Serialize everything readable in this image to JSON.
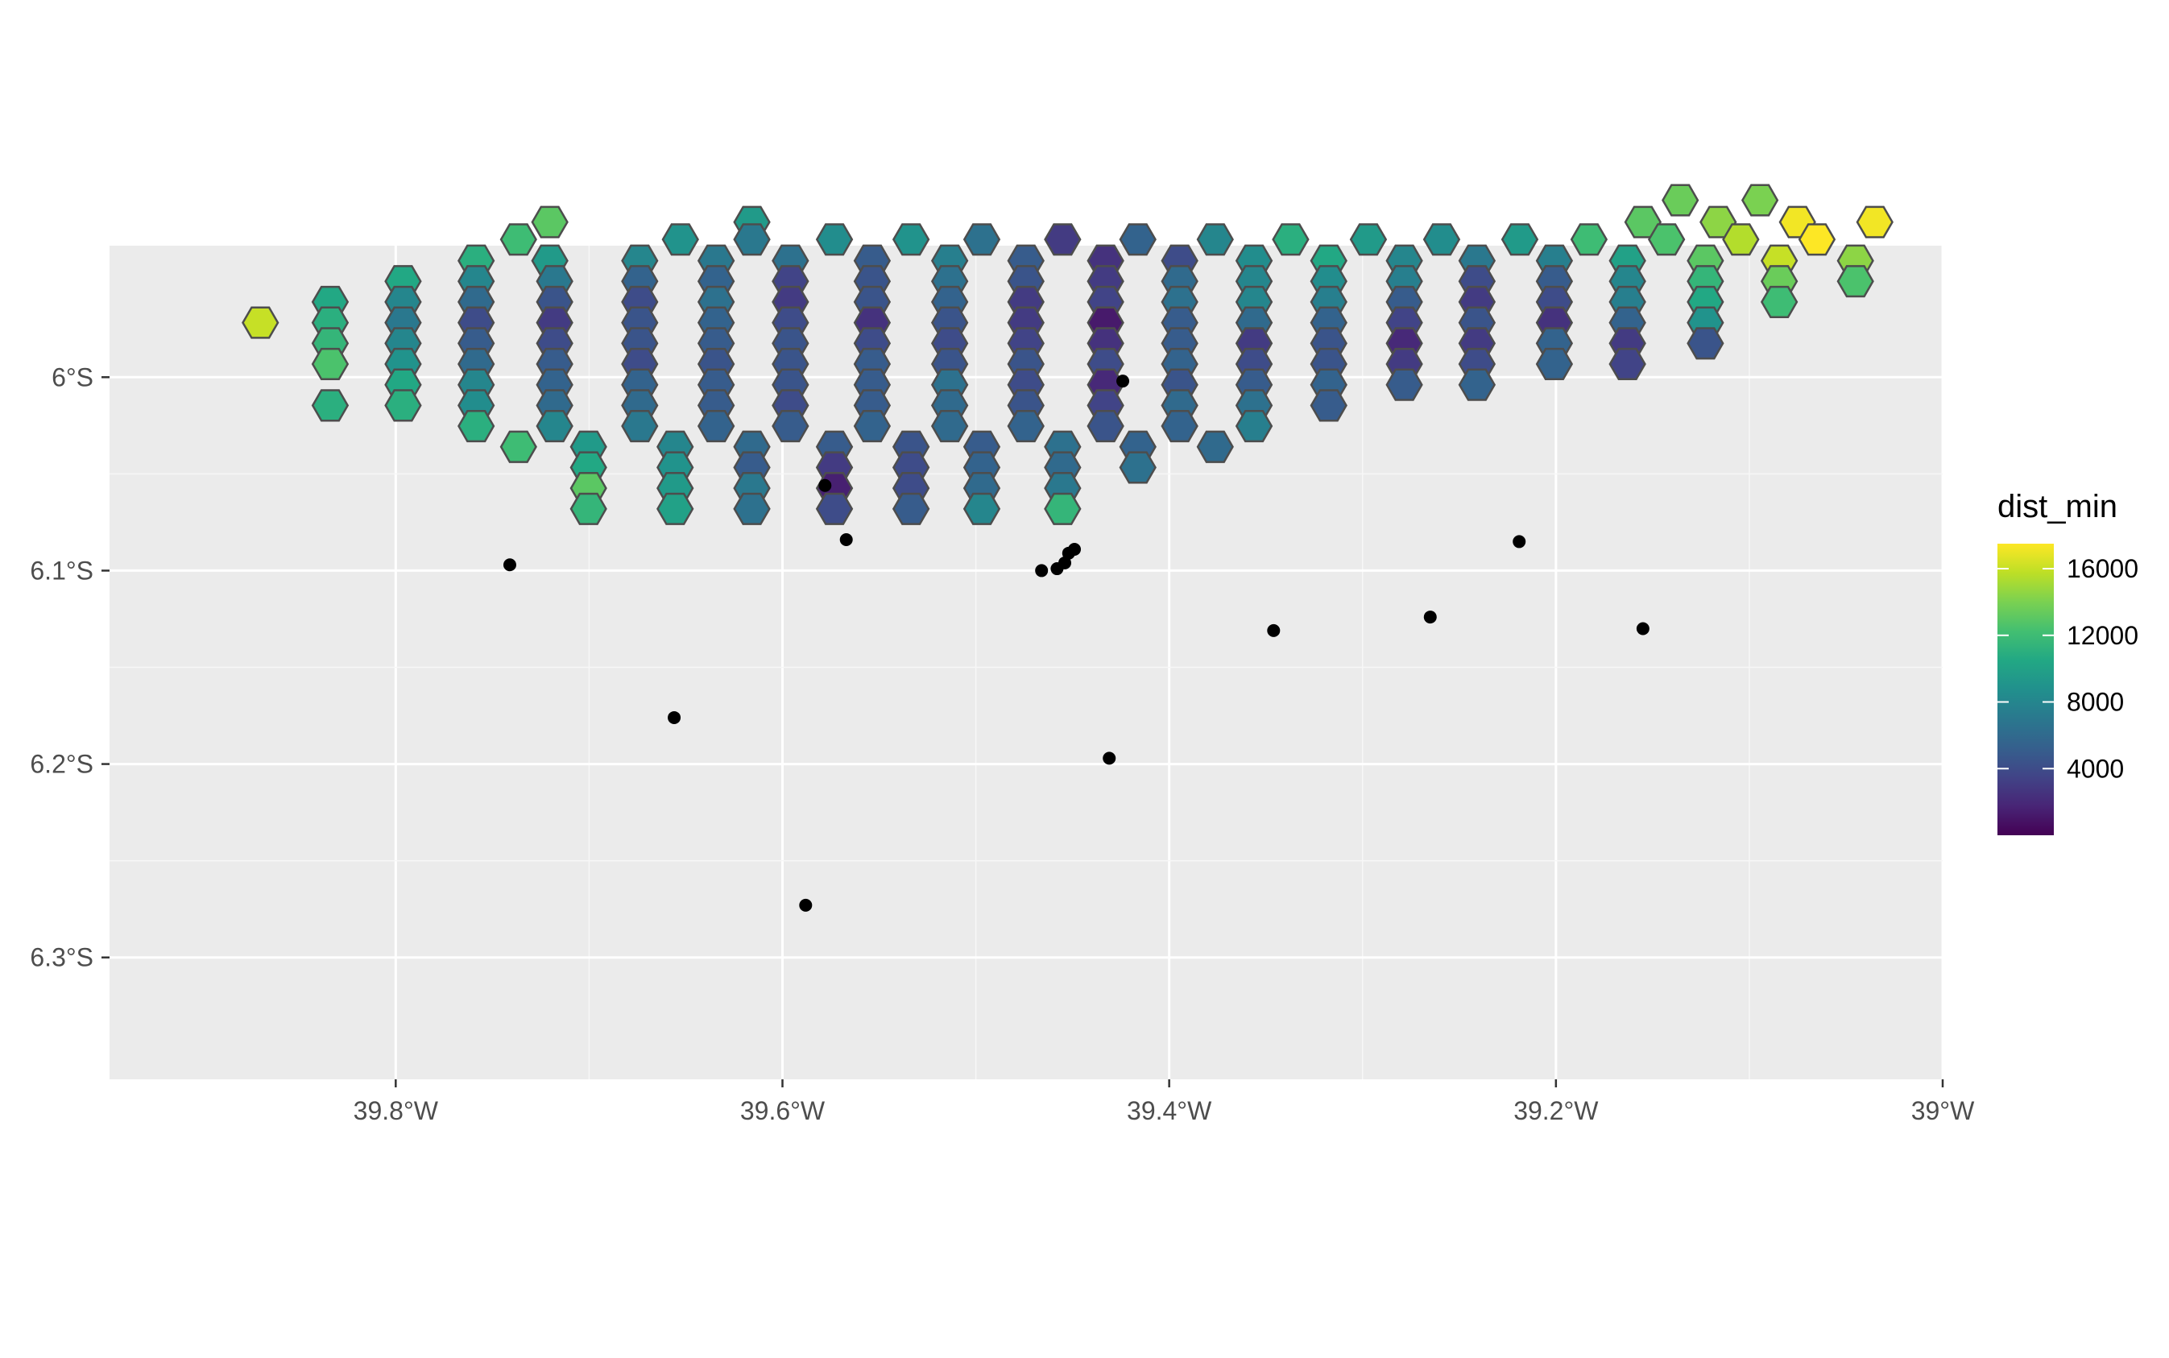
{
  "chart_data": {
    "type": "map",
    "geometry": "hexagonal grid over a region",
    "fill_variable": "dist_min",
    "x_ticks": [
      {
        "value": -39.8,
        "label": "39.8°W"
      },
      {
        "value": -39.6,
        "label": "39.6°W"
      },
      {
        "value": -39.4,
        "label": "39.4°W"
      },
      {
        "value": -39.2,
        "label": "39.2°W"
      },
      {
        "value": -39.0,
        "label": "39°W"
      }
    ],
    "y_ticks": [
      {
        "value": -6.0,
        "label": "6°S"
      },
      {
        "value": -6.1,
        "label": "6.1°S"
      },
      {
        "value": -6.2,
        "label": "6.2°S"
      },
      {
        "value": -6.3,
        "label": "6.3°S"
      }
    ],
    "xlim": [
      -39.948,
      -39.0
    ],
    "ylim": [
      -6.363,
      -5.932
    ],
    "grid": true,
    "legend": {
      "title": "dist_min",
      "position": "right",
      "scale": "viridis",
      "range": [
        0,
        17500
      ],
      "breaks": [
        {
          "value": 4000,
          "label": "4000"
        },
        {
          "value": 8000,
          "label": "8000"
        },
        {
          "value": 12000,
          "label": "12000"
        },
        {
          "value": 16000,
          "label": "16000"
        }
      ]
    },
    "hex_size_deg": 0.0181,
    "hex_rows": [
      {
        "lat": -5.9085,
        "cells": [
          [
            -39.1357,
            13500
          ],
          [
            -39.0945,
            14000
          ]
        ]
      },
      {
        "lat": -5.9198,
        "cells": [
          [
            -39.7203,
            13000
          ],
          [
            -39.6158,
            9500
          ],
          [
            -39.155,
            13000
          ],
          [
            -39.1161,
            14500
          ],
          [
            -39.0751,
            17200
          ],
          [
            -39.0351,
            17200
          ]
        ]
      },
      {
        "lat": -5.9288,
        "cells": [
          [
            -39.7365,
            12000
          ],
          [
            -39.6528,
            9000
          ],
          [
            -39.6158,
            7000
          ],
          [
            -39.5731,
            8500
          ],
          [
            -39.5335,
            9000
          ],
          [
            -39.4969,
            6500
          ],
          [
            -39.4551,
            3000
          ],
          [
            -39.4162,
            5500
          ],
          [
            -39.3762,
            8000
          ],
          [
            -39.3372,
            11000
          ],
          [
            -39.297,
            9500
          ],
          [
            -39.2591,
            8500
          ],
          [
            -39.2187,
            9500
          ],
          [
            -39.1829,
            12000
          ],
          [
            -39.1428,
            12500
          ],
          [
            -39.1044,
            15500
          ],
          [
            -39.065,
            17500
          ]
        ]
      },
      {
        "lat": -5.9398,
        "cells": [
          [
            -39.7584,
            11000
          ],
          [
            -39.7203,
            9500
          ],
          [
            -39.6738,
            8000
          ],
          [
            -39.6343,
            7000
          ],
          [
            -39.5959,
            6500
          ],
          [
            -39.5536,
            5000
          ],
          [
            -39.5135,
            7500
          ],
          [
            -39.4741,
            5000
          ],
          [
            -39.4329,
            2500
          ],
          [
            -39.3946,
            4000
          ],
          [
            -39.3561,
            8500
          ],
          [
            -39.3175,
            10500
          ],
          [
            -39.2784,
            8000
          ],
          [
            -39.2408,
            7000
          ],
          [
            -39.2008,
            7500
          ],
          [
            -39.163,
            10000
          ],
          [
            -39.1227,
            13000
          ],
          [
            -39.0845,
            16000
          ],
          [
            -39.0451,
            14500
          ]
        ]
      },
      {
        "lat": -5.9504,
        "cells": [
          [
            -39.7962,
            10500
          ],
          [
            -39.7584,
            8000
          ],
          [
            -39.7178,
            7000
          ],
          [
            -39.6738,
            5500
          ],
          [
            -39.6343,
            5500
          ],
          [
            -39.5959,
            3500
          ],
          [
            -39.5536,
            4500
          ],
          [
            -39.5135,
            6500
          ],
          [
            -39.4741,
            4500
          ],
          [
            -39.4329,
            3000
          ],
          [
            -39.3946,
            6000
          ],
          [
            -39.3561,
            8000
          ],
          [
            -39.3175,
            8500
          ],
          [
            -39.2784,
            7500
          ],
          [
            -39.2408,
            4000
          ],
          [
            -39.2008,
            5000
          ],
          [
            -39.163,
            8000
          ],
          [
            -39.1227,
            11500
          ],
          [
            -39.0845,
            13500
          ],
          [
            -39.0451,
            12500
          ]
        ]
      },
      {
        "lat": -5.9611,
        "cells": [
          [
            -39.8339,
            10500
          ],
          [
            -39.7962,
            8000
          ],
          [
            -39.7584,
            6000
          ],
          [
            -39.7178,
            4500
          ],
          [
            -39.6738,
            4000
          ],
          [
            -39.6343,
            6500
          ],
          [
            -39.5959,
            3000
          ],
          [
            -39.5536,
            4500
          ],
          [
            -39.5135,
            5500
          ],
          [
            -39.4741,
            3000
          ],
          [
            -39.4329,
            3500
          ],
          [
            -39.3946,
            6500
          ],
          [
            -39.3561,
            8000
          ],
          [
            -39.3175,
            7500
          ],
          [
            -39.2784,
            5000
          ],
          [
            -39.2408,
            3000
          ],
          [
            -39.2008,
            4000
          ],
          [
            -39.163,
            7500
          ],
          [
            -39.1227,
            10500
          ],
          [
            -39.0845,
            12000
          ]
        ]
      },
      {
        "lat": -5.9718,
        "cells": [
          [
            -39.87,
            16000
          ],
          [
            -39.8339,
            11000
          ],
          [
            -39.7962,
            7000
          ],
          [
            -39.7584,
            4000
          ],
          [
            -39.7178,
            3000
          ],
          [
            -39.6738,
            4500
          ],
          [
            -39.6343,
            5500
          ],
          [
            -39.5959,
            4000
          ],
          [
            -39.5536,
            2500
          ],
          [
            -39.5135,
            4500
          ],
          [
            -39.4741,
            3000
          ],
          [
            -39.4329,
            1200
          ],
          [
            -39.3946,
            5000
          ],
          [
            -39.3561,
            6000
          ],
          [
            -39.3175,
            5500
          ],
          [
            -39.2784,
            3500
          ],
          [
            -39.2408,
            4500
          ],
          [
            -39.2008,
            2500
          ],
          [
            -39.163,
            5500
          ],
          [
            -39.1227,
            9000
          ]
        ]
      },
      {
        "lat": -5.9825,
        "cells": [
          [
            -39.8339,
            11500
          ],
          [
            -39.7962,
            8000
          ],
          [
            -39.7584,
            5000
          ],
          [
            -39.7178,
            4000
          ],
          [
            -39.6738,
            4500
          ],
          [
            -39.6343,
            5000
          ],
          [
            -39.5959,
            4500
          ],
          [
            -39.5536,
            4000
          ],
          [
            -39.5135,
            4000
          ],
          [
            -39.4741,
            3500
          ],
          [
            -39.4329,
            2500
          ],
          [
            -39.3946,
            5000
          ],
          [
            -39.3561,
            3000
          ],
          [
            -39.3175,
            4500
          ],
          [
            -39.2784,
            2000
          ],
          [
            -39.2408,
            3000
          ],
          [
            -39.2008,
            5500
          ],
          [
            -39.163,
            3000
          ],
          [
            -39.1227,
            4500
          ]
        ]
      },
      {
        "lat": -5.9932,
        "cells": [
          [
            -39.8339,
            12500
          ],
          [
            -39.7962,
            9000
          ],
          [
            -39.7584,
            6000
          ],
          [
            -39.7178,
            5000
          ],
          [
            -39.6738,
            4000
          ],
          [
            -39.6343,
            4500
          ],
          [
            -39.5959,
            4500
          ],
          [
            -39.5536,
            5000
          ],
          [
            -39.5135,
            4500
          ],
          [
            -39.4741,
            4500
          ],
          [
            -39.4329,
            4000
          ],
          [
            -39.3946,
            5500
          ],
          [
            -39.3561,
            4000
          ],
          [
            -39.3175,
            4500
          ],
          [
            -39.2784,
            3000
          ],
          [
            -39.2408,
            4000
          ],
          [
            -39.2008,
            5500
          ],
          [
            -39.163,
            3500
          ]
        ]
      },
      {
        "lat": -6.0039,
        "cells": [
          [
            -39.7962,
            10500
          ],
          [
            -39.7584,
            8000
          ],
          [
            -39.7178,
            5500
          ],
          [
            -39.6738,
            5500
          ],
          [
            -39.6343,
            5000
          ],
          [
            -39.5959,
            4500
          ],
          [
            -39.5536,
            5000
          ],
          [
            -39.5135,
            6500
          ],
          [
            -39.4741,
            4000
          ],
          [
            -39.4329,
            2000
          ],
          [
            -39.3946,
            4500
          ],
          [
            -39.3561,
            5000
          ],
          [
            -39.3175,
            5500
          ],
          [
            -39.2784,
            5000
          ],
          [
            -39.2408,
            5500
          ]
        ]
      },
      {
        "lat": -6.0146,
        "cells": [
          [
            -39.8339,
            11000
          ],
          [
            -39.7962,
            11000
          ],
          [
            -39.7584,
            8500
          ],
          [
            -39.7178,
            6000
          ],
          [
            -39.6738,
            6000
          ],
          [
            -39.6343,
            5000
          ],
          [
            -39.5959,
            4000
          ],
          [
            -39.5536,
            5000
          ],
          [
            -39.5135,
            6000
          ],
          [
            -39.4741,
            4500
          ],
          [
            -39.4329,
            3500
          ],
          [
            -39.3946,
            6000
          ],
          [
            -39.3561,
            6500
          ],
          [
            -39.3175,
            5000
          ]
        ]
      },
      {
        "lat": -6.0253,
        "cells": [
          [
            -39.7584,
            11000
          ],
          [
            -39.7178,
            8000
          ],
          [
            -39.6738,
            7000
          ],
          [
            -39.6343,
            5500
          ],
          [
            -39.5959,
            5000
          ],
          [
            -39.5536,
            5500
          ],
          [
            -39.5135,
            6000
          ],
          [
            -39.4741,
            5500
          ],
          [
            -39.4329,
            4500
          ],
          [
            -39.3946,
            5500
          ],
          [
            -39.3561,
            7500
          ]
        ]
      },
      {
        "lat": -6.036,
        "cells": [
          [
            -39.7365,
            12000
          ],
          [
            -39.7003,
            9500
          ],
          [
            -39.6555,
            8000
          ],
          [
            -39.6158,
            6000
          ],
          [
            -39.5731,
            5000
          ],
          [
            -39.5335,
            4500
          ],
          [
            -39.4969,
            5000
          ],
          [
            -39.4551,
            6500
          ],
          [
            -39.4162,
            5500
          ],
          [
            -39.3762,
            6000
          ]
        ]
      },
      {
        "lat": -6.0467,
        "cells": [
          [
            -39.7003,
            10500
          ],
          [
            -39.6555,
            9000
          ],
          [
            -39.6158,
            5000
          ],
          [
            -39.5731,
            3000
          ],
          [
            -39.5335,
            4000
          ],
          [
            -39.4969,
            5500
          ],
          [
            -39.4551,
            6000
          ],
          [
            -39.4162,
            6500
          ]
        ]
      },
      {
        "lat": -6.0574,
        "cells": [
          [
            -39.7003,
            13000
          ],
          [
            -39.6555,
            9500
          ],
          [
            -39.6158,
            7000
          ],
          [
            -39.5731,
            1500
          ],
          [
            -39.5335,
            4000
          ],
          [
            -39.4969,
            6000
          ],
          [
            -39.4551,
            7000
          ]
        ]
      },
      {
        "lat": -6.0681,
        "cells": [
          [
            -39.7003,
            11500
          ],
          [
            -39.6555,
            10000
          ],
          [
            -39.6158,
            6500
          ],
          [
            -39.5731,
            4000
          ],
          [
            -39.5335,
            5000
          ],
          [
            -39.4969,
            8000
          ],
          [
            -39.4551,
            11500
          ]
        ]
      }
    ],
    "points": [
      [
        -39.741,
        -6.097
      ],
      [
        -39.578,
        -6.056
      ],
      [
        -39.567,
        -6.084
      ],
      [
        -39.466,
        -6.1
      ],
      [
        -39.458,
        -6.099
      ],
      [
        -39.454,
        -6.096
      ],
      [
        -39.452,
        -6.091
      ],
      [
        -39.449,
        -6.089
      ],
      [
        -39.424,
        -6.002
      ],
      [
        -39.346,
        -6.131
      ],
      [
        -39.265,
        -6.124
      ],
      [
        -39.219,
        -6.085
      ],
      [
        -39.155,
        -6.13
      ],
      [
        -39.656,
        -6.176
      ],
      [
        -39.431,
        -6.197
      ],
      [
        -39.588,
        -6.273
      ]
    ]
  }
}
